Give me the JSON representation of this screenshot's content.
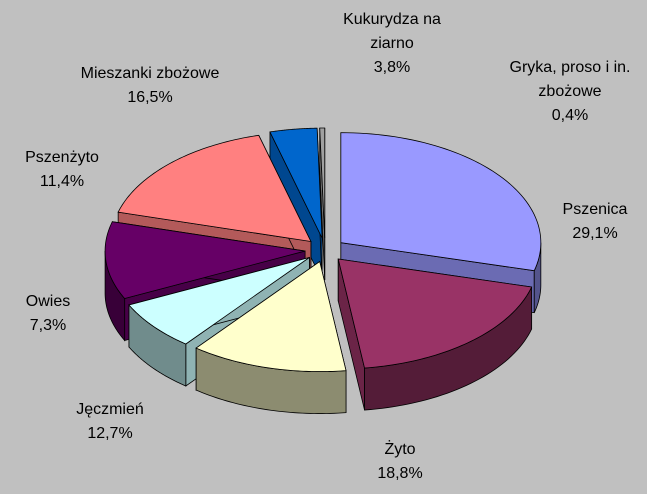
{
  "chart_data": {
    "type": "pie",
    "categories": [
      "Pszenica",
      "Żyto",
      "Jęczmień",
      "Owies",
      "Pszenżyto",
      "Mieszanki zbożowe",
      "Kukurydza na ziarno",
      "Gryka, proso i in. zbożowe"
    ],
    "values": [
      29.1,
      18.8,
      12.7,
      7.3,
      11.4,
      16.5,
      3.8,
      0.4
    ],
    "value_labels": [
      "29,1%",
      "18,8%",
      "12,7%",
      "7,3%",
      "11,4%",
      "16,5%",
      "3,8%",
      "0,4%"
    ],
    "colors": [
      "#9999ff",
      "#993366",
      "#ffffcc",
      "#ccffff",
      "#660066",
      "#ff8080",
      "#0066cc",
      "#a0a0a0"
    ]
  }
}
